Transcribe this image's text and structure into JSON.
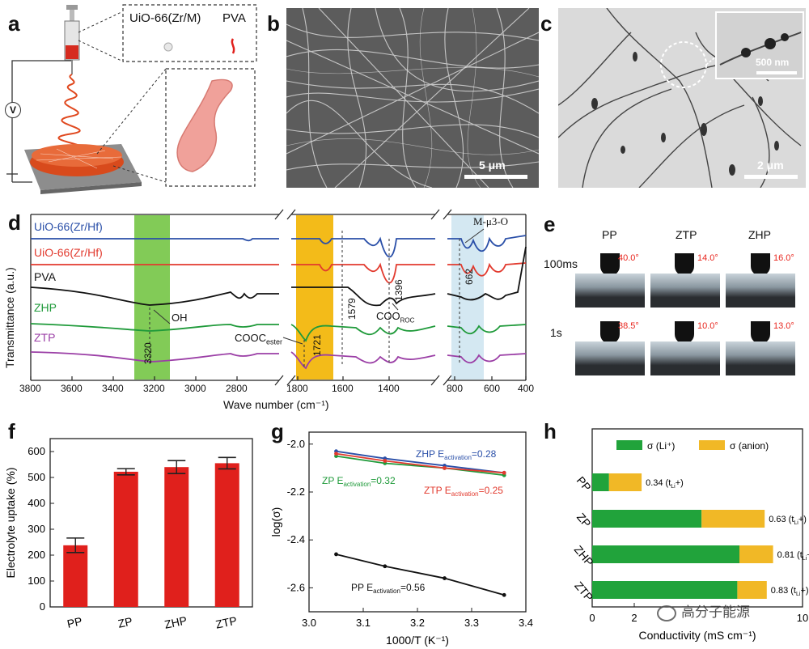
{
  "panel_labels": [
    "a",
    "b",
    "c",
    "d",
    "e",
    "f",
    "g",
    "h"
  ],
  "panel_a": {
    "inset_labels": [
      "UiO-66(Zr/M)",
      "PVA"
    ],
    "voltage_symbol": "V"
  },
  "panel_b": {
    "scale": "5 μm"
  },
  "panel_c": {
    "scale": "2 μm",
    "inset_scale": "500 nm"
  },
  "panel_d": {
    "series": [
      "UiO-66(Zr/Hf)",
      "UiO-66(Zr/Hf)",
      "PVA",
      "ZHP",
      "ZTP"
    ],
    "series_colors": [
      "#2a4fa8",
      "#e23a2e",
      "#111111",
      "#1f9a3a",
      "#9b3fa6"
    ],
    "annotations": {
      "oh": "OH",
      "v3320": "3320",
      "cooc": "COOC",
      "cooc_sub": "ester",
      "v1721": "1721",
      "v1579": "1579",
      "v1396": "1396",
      "coo": "COO",
      "coo_sub": "ROC",
      "v662": "662",
      "mu3o": "M-μ3-O"
    },
    "ylabel": "Transmittance (a.u.)",
    "xlabel": "Wave number (cm⁻¹)",
    "xticks": [
      "3800",
      "3600",
      "3400",
      "3200",
      "3000",
      "2800",
      "1800",
      "1600",
      "1400",
      "800",
      "600",
      "400"
    ]
  },
  "panel_e": {
    "columns": [
      "PP",
      "ZTP",
      "ZHP"
    ],
    "rows": [
      "100ms",
      "1s"
    ],
    "angles": [
      [
        "40.0°",
        "14.0°",
        "16.0°"
      ],
      [
        "38.5°",
        "10.0°",
        "13.0°"
      ]
    ]
  },
  "chart_data": [
    {
      "type": "bar",
      "ylabel": "Electrolyte uptake (%)",
      "categories": [
        "PP",
        "ZP",
        "ZHP",
        "ZTP"
      ],
      "values": [
        238,
        522,
        540,
        555
      ],
      "errors": [
        28,
        12,
        25,
        22
      ],
      "ylim": [
        0,
        650
      ],
      "yticks": [
        "0",
        "100",
        "200",
        "300",
        "400",
        "500",
        "600"
      ],
      "color": "#e0201c"
    },
    {
      "type": "line",
      "xlabel": "1000/T (K⁻¹)",
      "ylabel": "log(σ)",
      "xlim": [
        3.0,
        3.4
      ],
      "ylim": [
        -2.7,
        -1.95
      ],
      "xticks": [
        "3.0",
        "3.1",
        "3.2",
        "3.3",
        "3.4"
      ],
      "yticks": [
        "-2.0",
        "-2.2",
        "-2.4",
        "-2.6"
      ],
      "series": [
        {
          "name": "ZHP",
          "color": "#2a4fa8",
          "x": [
            3.05,
            3.14,
            3.25,
            3.36
          ],
          "y": [
            -2.03,
            -2.06,
            -2.09,
            -2.12
          ]
        },
        {
          "name": "ZP",
          "color": "#1f9a3a",
          "x": [
            3.05,
            3.14,
            3.25,
            3.36
          ],
          "y": [
            -2.05,
            -2.08,
            -2.1,
            -2.13
          ]
        },
        {
          "name": "ZTP",
          "color": "#e23a2e",
          "x": [
            3.05,
            3.14,
            3.25,
            3.36
          ],
          "y": [
            -2.04,
            -2.07,
            -2.1,
            -2.12
          ]
        },
        {
          "name": "PP",
          "color": "#111111",
          "x": [
            3.05,
            3.14,
            3.25,
            3.36
          ],
          "y": [
            -2.46,
            -2.51,
            -2.56,
            -2.63
          ]
        }
      ],
      "labels": {
        "zhp": "ZHP E",
        "zhp_val": "=0.28",
        "zp": "ZP E",
        "zp_val": "=0.32",
        "ztp": "ZTP E",
        "ztp_val": "=0.25",
        "pp": "PP E",
        "pp_val": "=0.56",
        "sub": "activation"
      }
    },
    {
      "type": "bar",
      "orientation": "horizontal",
      "stacked": true,
      "xlabel": "Conductivity (mS cm⁻¹)",
      "xlim": [
        0,
        10
      ],
      "xticks": [
        "0",
        "2",
        "10"
      ],
      "categories": [
        "PP",
        "ZP",
        "ZHP",
        "ZTP"
      ],
      "series": [
        {
          "name": "σ (Li⁺)",
          "color": "#21a33b",
          "values": [
            0.8,
            5.2,
            7.0,
            6.9
          ]
        },
        {
          "name": "σ (anion)",
          "color": "#f1b826",
          "values": [
            1.55,
            3.0,
            1.6,
            1.4
          ]
        }
      ],
      "bar_labels": [
        "0.34 (t",
        "0.63 (t",
        "0.81 (t",
        "0.83 (t"
      ],
      "bar_label_suffix": "Li",
      "bar_label_tail": "+)"
    }
  ],
  "watermark": "高分子能源"
}
